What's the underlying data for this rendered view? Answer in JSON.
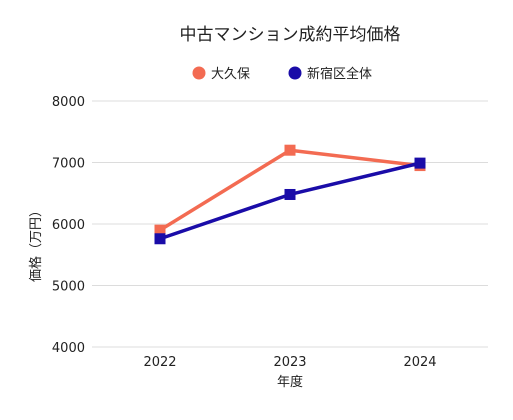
{
  "chart_data": {
    "type": "line",
    "title": "中古マンション成約平均価格",
    "xlabel": "年度",
    "ylabel": "価格（万円）",
    "x": [
      "2022",
      "2023",
      "2024"
    ],
    "ylim": [
      4000,
      8000
    ],
    "yticks": [
      4000,
      5000,
      6000,
      7000,
      8000
    ],
    "grid": true,
    "legend": "top-center",
    "series": [
      {
        "name": "大久保",
        "color": "#f36b52",
        "marker": "square",
        "values": [
          5900,
          7200,
          6950
        ]
      },
      {
        "name": "新宿区全体",
        "color": "#1a0ca8",
        "marker": "square",
        "values": [
          5760,
          6480,
          6990
        ]
      }
    ]
  }
}
